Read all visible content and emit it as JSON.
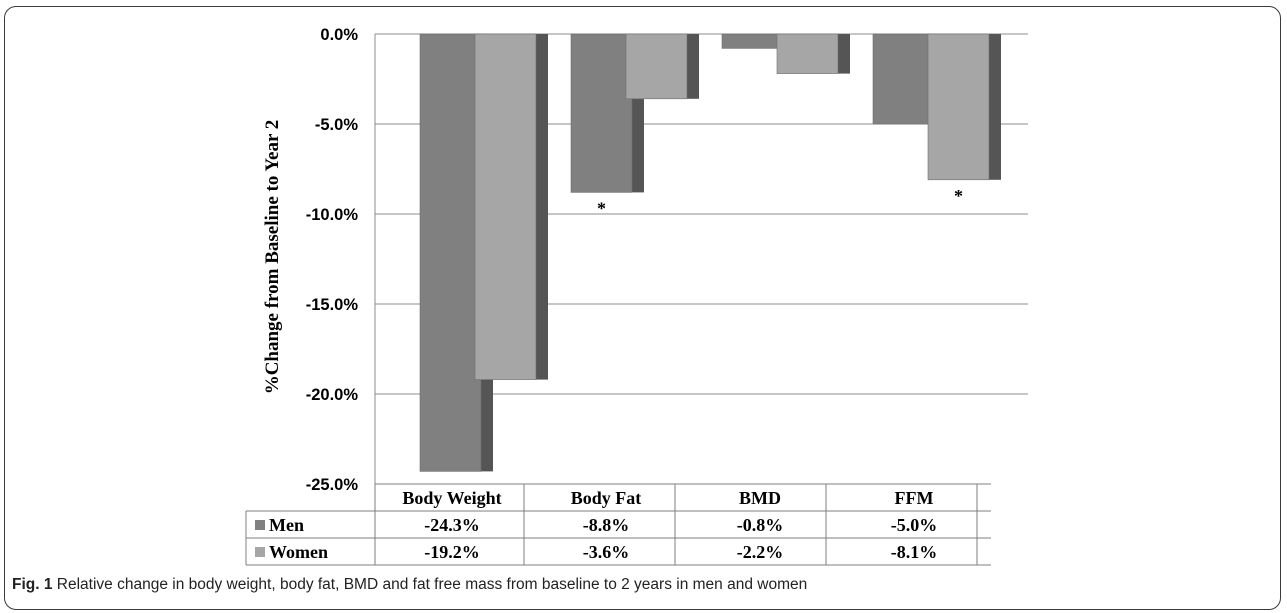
{
  "chart_data": {
    "type": "bar",
    "categories": [
      "Body Weight",
      "Body Fat",
      "BMD",
      "FFM"
    ],
    "series": [
      {
        "name": "Men",
        "values": [
          -24.3,
          -8.8,
          -0.8,
          -5.0
        ],
        "labels": [
          "-24.3%",
          "-8.8%",
          "-0.8%",
          "-5.0%"
        ],
        "color": "#808080"
      },
      {
        "name": "Women",
        "values": [
          -19.2,
          -3.6,
          -2.2,
          -8.1
        ],
        "labels": [
          "-19.2%",
          "-3.6%",
          "-2.2%",
          "-8.1%"
        ],
        "color": "#a6a6a6"
      }
    ],
    "ylabel": "%Change from Baseline to Year 2",
    "ylim": [
      -25,
      0
    ],
    "yticks": [
      0,
      -5,
      -10,
      -15,
      -20,
      -25
    ],
    "ytick_labels": [
      "0.0%",
      "-5.0%",
      "-10.0%",
      "-15.0%",
      "-20.0%",
      "-25.0%"
    ],
    "annotations": [
      {
        "category": "Body Fat",
        "series": "Men",
        "text": "*"
      },
      {
        "category": "FFM",
        "series": "Women",
        "text": "*"
      }
    ],
    "grid": true,
    "legend": "data-table"
  },
  "caption": {
    "label": "Fig. 1",
    "text": " Relative change in body weight, body fat, BMD and fat free mass from baseline to 2 years in men and women"
  }
}
